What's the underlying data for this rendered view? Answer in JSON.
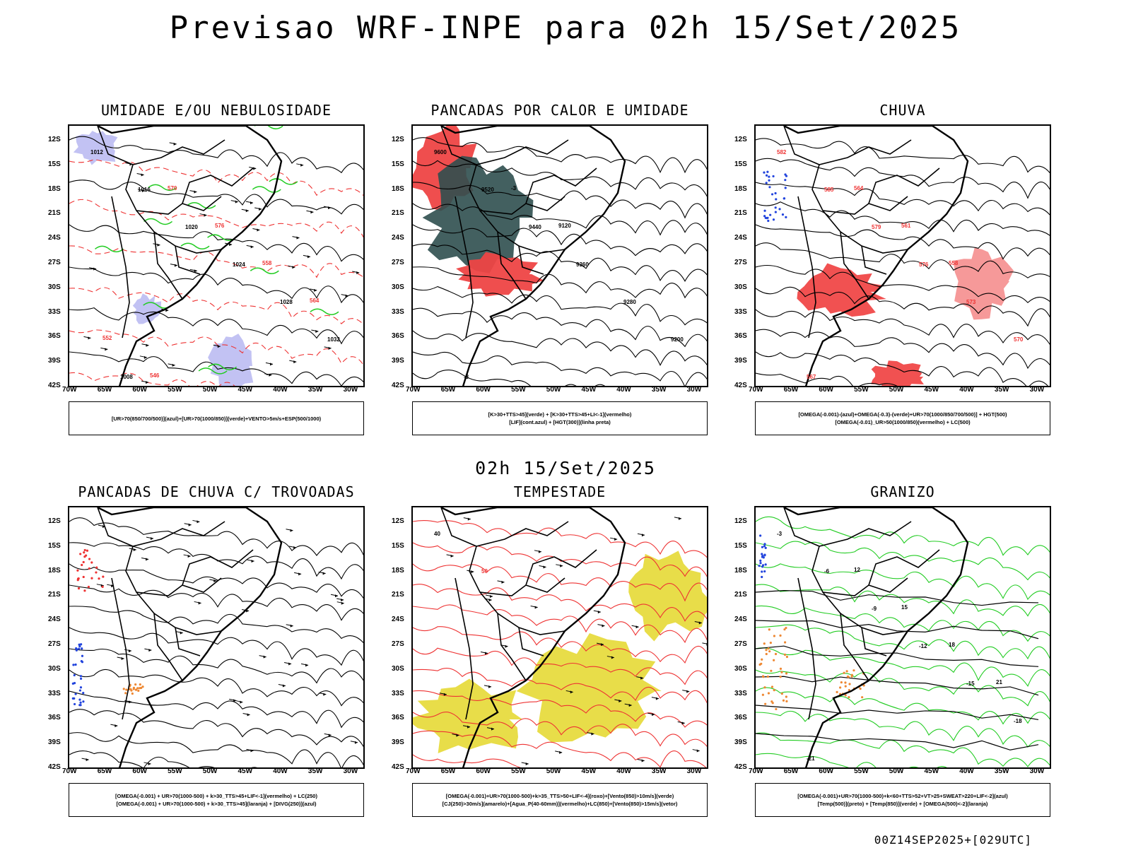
{
  "title": "Previsao WRF-INPE  para 02h 15/Set/2025",
  "subtitle": "02h 15/Set/2025",
  "footer": "00Z14SEP2025+[029UTC]",
  "axes": {
    "lat_labels": [
      "12S",
      "15S",
      "18S",
      "21S",
      "24S",
      "27S",
      "30S",
      "33S",
      "36S",
      "39S",
      "42S"
    ],
    "lon_labels": [
      "70W",
      "65W",
      "60W",
      "55W",
      "50W",
      "45W",
      "40W",
      "35W",
      "30W"
    ]
  },
  "panels": [
    {
      "title": "UMIDADE E/OU NEBULOSIDADE",
      "legend": [
        "[UR>70(850/700/500)](azul)+[UR>70(1000/850)](verde)+VENTO>5m/s+ESP(500/1000)"
      ],
      "contour_labels": [
        "1012",
        "1016",
        "1020",
        "1024",
        "1028",
        "1032",
        "1008",
        "570",
        "576",
        "558",
        "564",
        "552",
        "546"
      ],
      "colors": {
        "fill_light": "#b3b3f0",
        "green": "#22cc22",
        "red": "#ee3333"
      }
    },
    {
      "title": "PANCADAS POR CALOR E UMIDADE",
      "legend": [
        "[K>30+TTS>45](verde) + [K>30+TTS>45+LI<-1](vermelho)",
        "[LIF](cont.azul) + [HGT(300)](linha preta)"
      ],
      "contour_labels": [
        "9600",
        "9520",
        "9440",
        "9360",
        "9280",
        "9200",
        "-3",
        "-3",
        "9120"
      ],
      "colors": {
        "red": "#ee4444",
        "teal": "#2f4f4f",
        "blue": "#2244dd"
      }
    },
    {
      "title": "CHUVA",
      "legend": [
        "[OMEGA(-0.001)-(azul)+OMEGA(-0.3)-(verde)+UR>70(1000/850/700/500)] + HGT(500)",
        "[OMEGA(-0.01)_UR>50(1000/850)(vermelho) + LC(500)"
      ],
      "contour_labels": [
        "582",
        "585",
        "579",
        "576",
        "573",
        "570",
        "567",
        "564",
        "561",
        "558"
      ],
      "colors": {
        "red": "#ee3333",
        "blue": "#2244dd",
        "green": "#22aa22"
      }
    },
    {
      "title": "PANCADAS DE CHUVA C/ TROVOADAS",
      "legend": [
        "[OMEGA(-0.001) + UR>70(1000-500) + k>30_TTS>45+LIF<-1](vermelho) + LC(250)",
        "[OMEGA(-0.001) + UR>70(1000-500) + k>30_TTS>45](laranja) + [DIVG(250)](azul)"
      ],
      "contour_labels": [],
      "colors": {
        "red": "#ee3333",
        "orange": "#ee8833",
        "blue": "#2244dd"
      }
    },
    {
      "title": "TEMPESTADE",
      "legend": [
        "[OMEGA(-0.001)+UR>70(1000-500)+k>35_TTS>50+LIF<-4](roxo)+[Vento(850)>10m/s](verde)",
        "[CJ(250)>30m/s](amarelo)+[Agua_P(40-60mm)](vermelho)+LC(850)+[Vento(850)>15m/s](vetor)"
      ],
      "contour_labels": [
        "40",
        "50"
      ],
      "colors": {
        "yellow": "#e5d935",
        "red": "#ee3333",
        "green": "#22bb22"
      }
    },
    {
      "title": "GRANIZO",
      "legend": [
        "[OMEGA(-0.001)+UR>70(1000-500)+k<60+TTS>52+VT>25+SWEAT>220+LIF<-2](azul)",
        "[Temp(500)](preto) + [Temp(850)](verde) + [OMEGA(500)<-2](laranja)"
      ],
      "contour_labels": [
        "-3",
        "-6",
        "-9",
        "-12",
        "-15",
        "-18",
        "-21",
        "12",
        "15",
        "18",
        "21"
      ],
      "colors": {
        "green": "#22cc22",
        "orange": "#ee8833",
        "blue": "#2244dd"
      }
    }
  ]
}
